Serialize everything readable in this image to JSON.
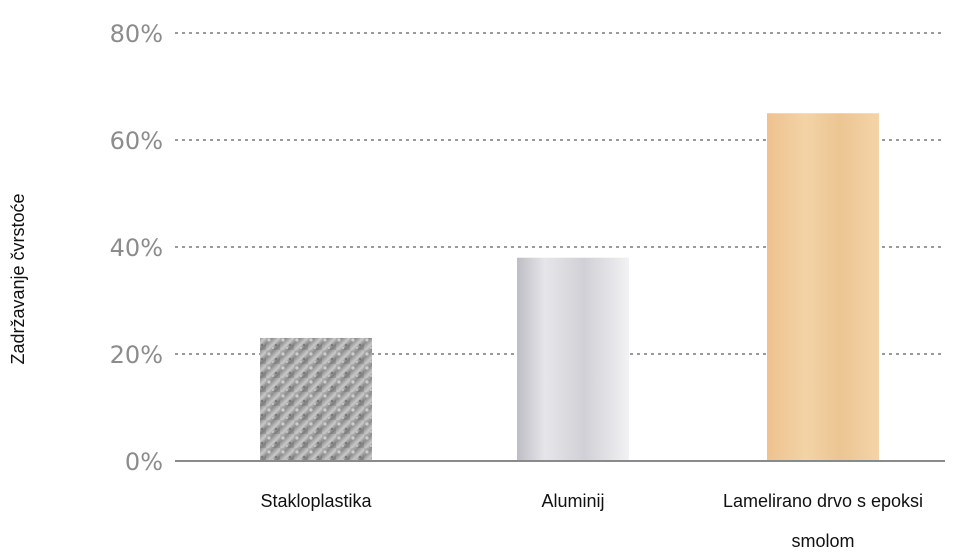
{
  "chart_data": {
    "type": "bar",
    "title": "",
    "xlabel": "",
    "ylabel": "Zadržavanje čvrstoće",
    "categories": [
      "Stakloplastika",
      "Aluminij",
      "Lamelirano drvo s epoksi smolom"
    ],
    "category_lines": [
      [
        "Stakloplastika"
      ],
      [
        "Aluminij"
      ],
      [
        "Lamelirano drvo s epoksi",
        "smolom"
      ]
    ],
    "values": [
      23,
      38,
      65
    ],
    "value_unit": "%",
    "ylim": [
      0,
      80
    ],
    "yticks": [
      0,
      20,
      40,
      60,
      80
    ],
    "ytick_labels": [
      "0%",
      "20%",
      "40%",
      "60%",
      "80%"
    ],
    "grid": "dotted horizontal",
    "bar_textures": [
      "fiberglass-gray",
      "brushed-aluminum",
      "light-wood"
    ],
    "colors": {
      "fiberglass": "#9c9c9c",
      "aluminum": "#d3d3d8",
      "wood": "#efc898",
      "grid": "#9a9a9a",
      "axis": "#8a8a8a",
      "tick_text": "#8c8c8c"
    }
  }
}
